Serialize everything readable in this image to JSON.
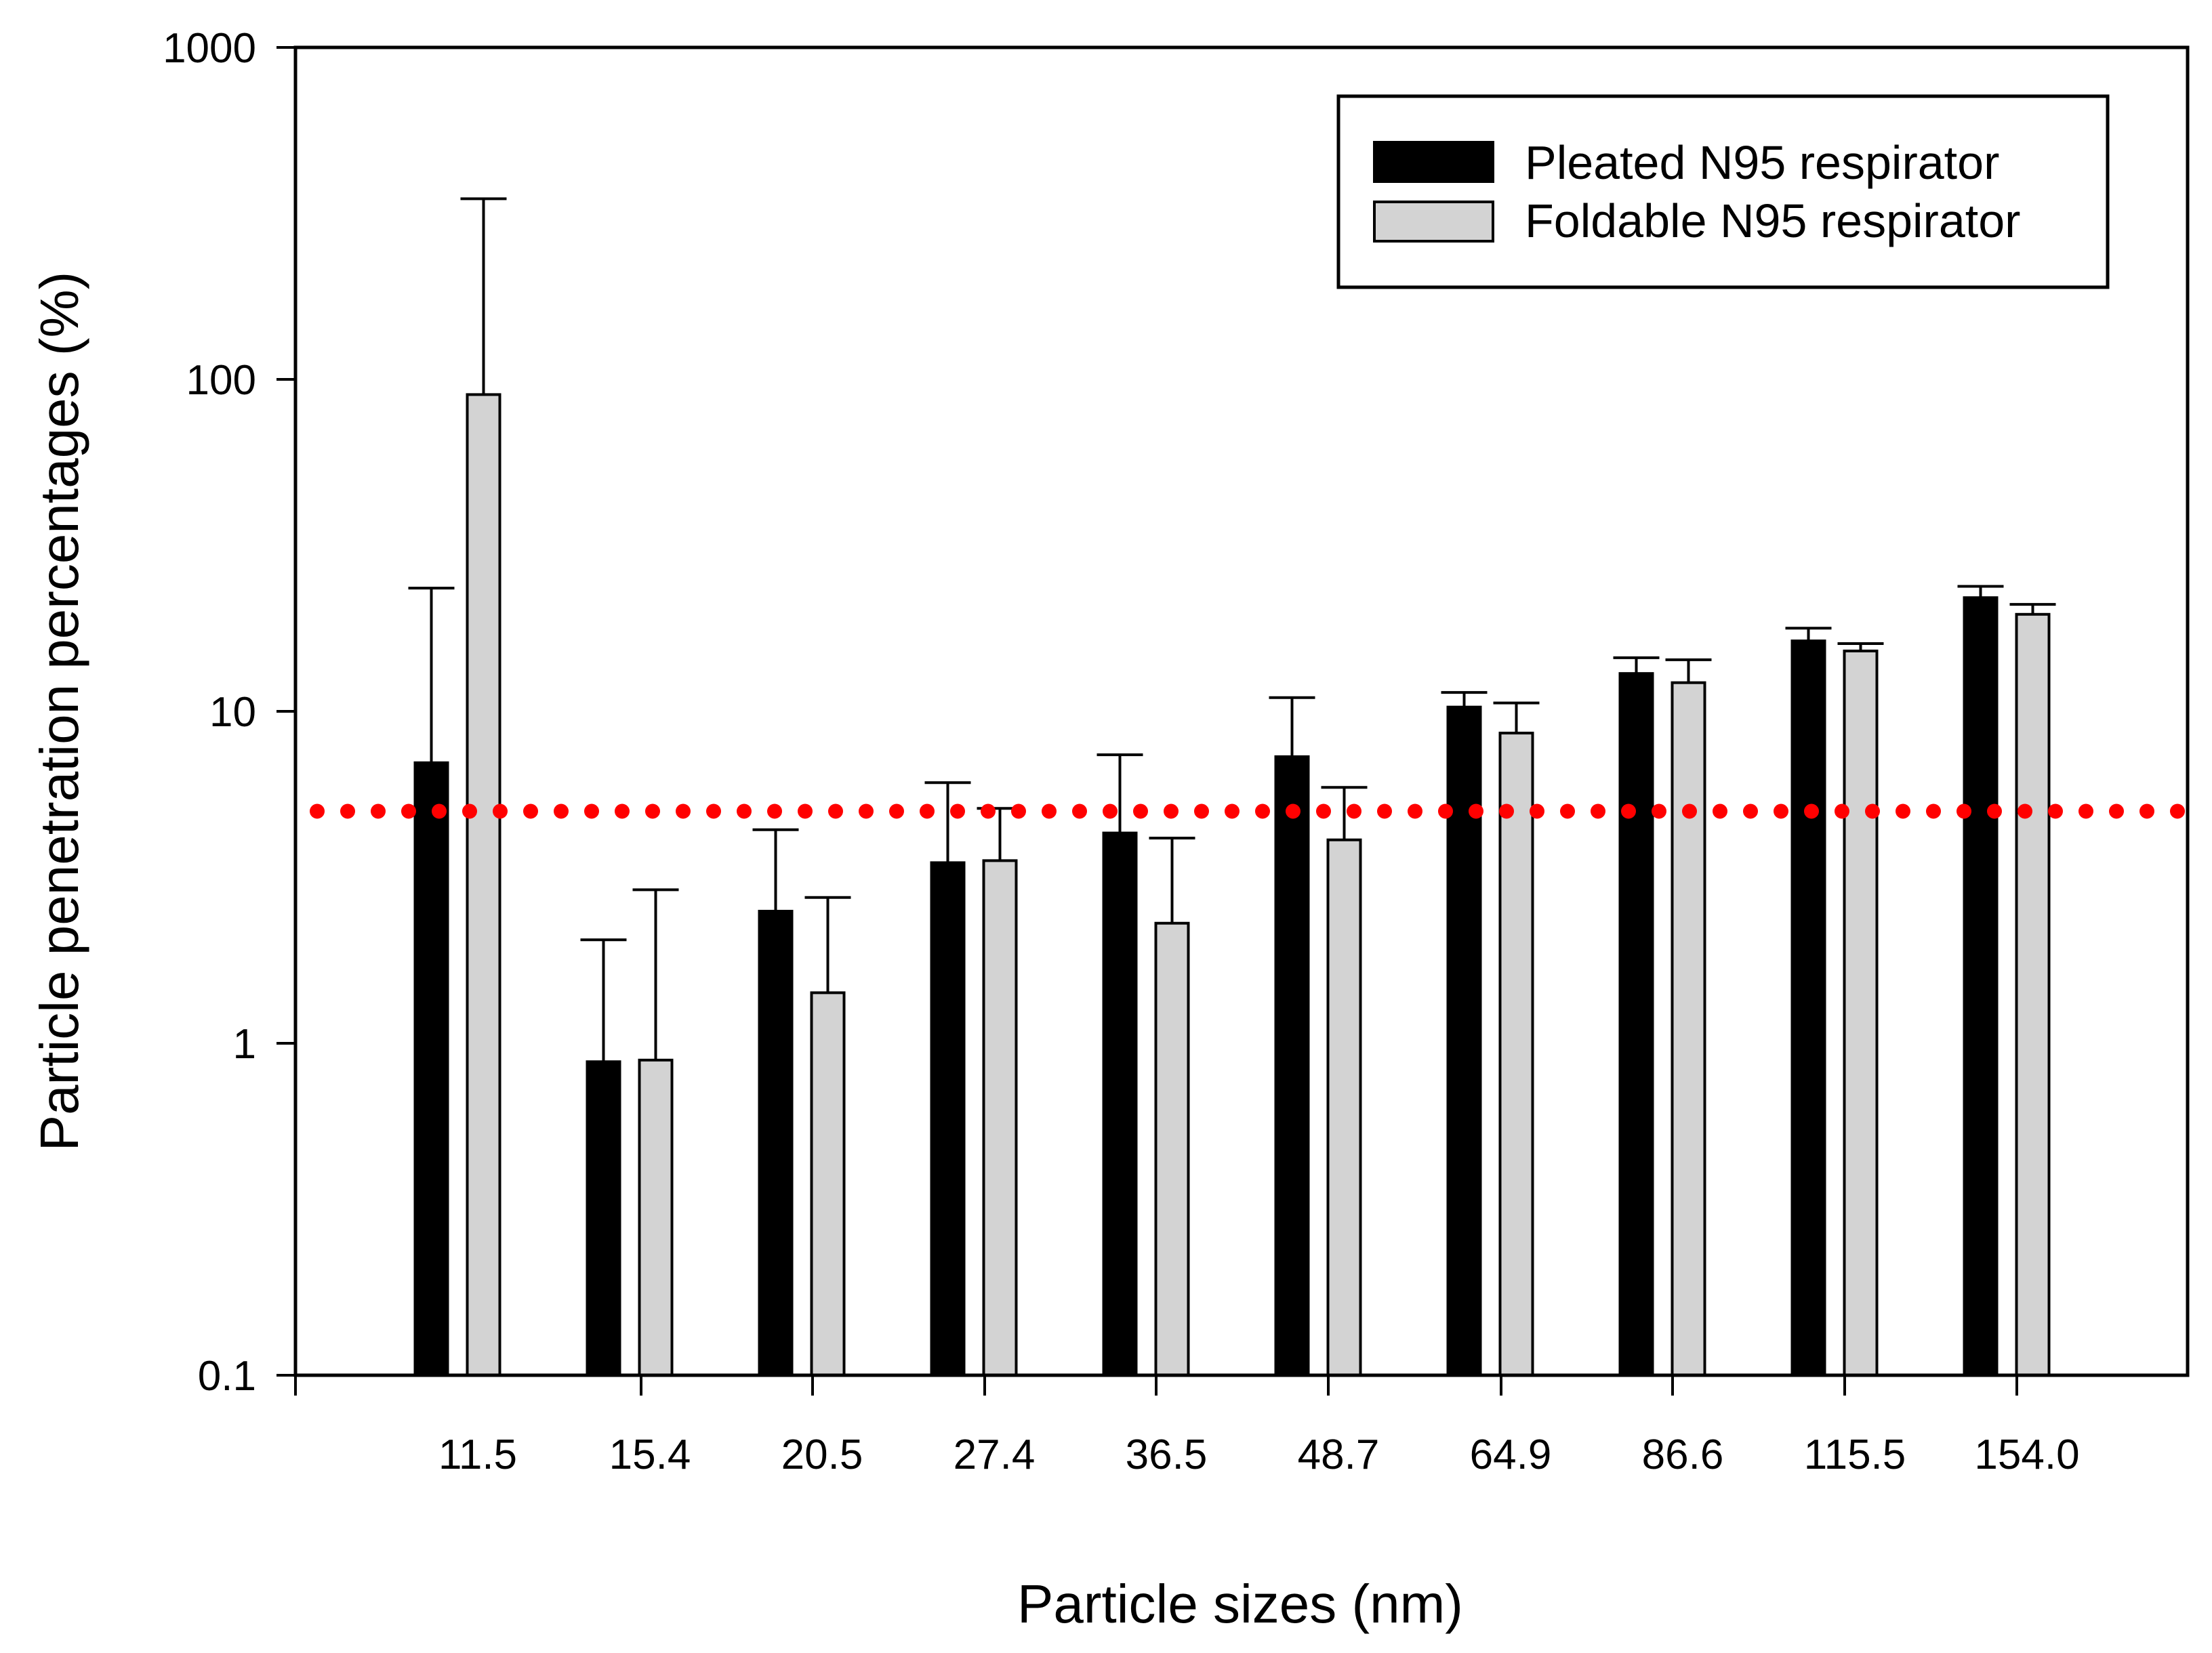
{
  "chart_data": {
    "type": "bar",
    "title": "",
    "xlabel": "Particle sizes (nm)",
    "ylabel": "Particle penetration percentages (%)",
    "yscale": "log",
    "ylim": [
      0.1,
      1000
    ],
    "yticks": [
      0.1,
      1,
      10,
      100,
      1000
    ],
    "ytick_labels": [
      "0.1",
      "1",
      "10",
      "100",
      "1000"
    ],
    "categories": [
      "11.5",
      "15.4",
      "20.5",
      "27.4",
      "36.5",
      "48.7",
      "64.9",
      "86.6",
      "115.5",
      "154.0"
    ],
    "series": [
      {
        "name": "Pleated N95 respirator",
        "color": "#000000",
        "values": [
          7.0,
          0.88,
          2.5,
          3.5,
          4.3,
          7.3,
          10.3,
          13.0,
          16.3,
          22.0
        ],
        "errors": [
          23.5,
          2.05,
          4.4,
          6.1,
          7.4,
          11.0,
          11.4,
          14.5,
          17.8,
          23.8
        ]
      },
      {
        "name": "Foldable N95 respirator",
        "color": "#d3d3d3",
        "values": [
          90.0,
          0.89,
          1.42,
          3.55,
          2.3,
          4.1,
          8.6,
          12.2,
          15.2,
          19.6
        ],
        "errors": [
          350.0,
          2.9,
          2.75,
          5.1,
          4.15,
          5.9,
          10.6,
          14.3,
          16.0,
          21.0
        ]
      }
    ],
    "reference_line": {
      "value": 5.0,
      "color": "#ff0000",
      "style": "dotted"
    },
    "legend_position": "top-right",
    "grid": false
  }
}
